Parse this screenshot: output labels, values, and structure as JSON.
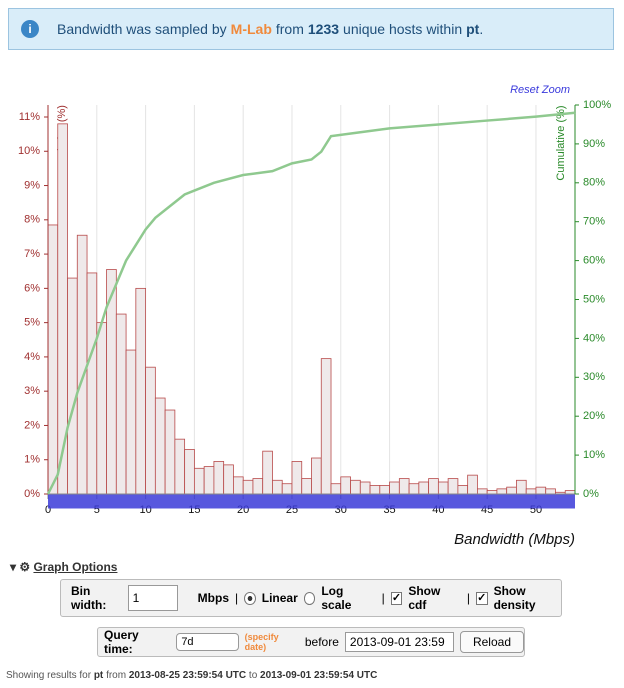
{
  "header": {
    "parts": [
      "Bandwidth was sampled by",
      "M-Lab",
      "from",
      "1233",
      "unique hosts within",
      "pt",
      "."
    ]
  },
  "chart_data": {
    "type": "histogram",
    "reset_zoom": "Reset Zoom",
    "ylabel": "Relative (%)",
    "y2label": "Cumulative (%)",
    "xlabel": "Bandwidth (Mbps)",
    "bins": [
      0,
      1,
      2,
      3,
      4,
      5,
      6,
      7,
      8,
      9,
      10,
      11,
      12,
      13,
      14,
      15,
      16,
      17,
      18,
      19,
      20,
      21,
      22,
      23,
      24,
      25,
      26,
      27,
      28,
      29,
      30,
      31,
      32,
      33,
      34,
      35,
      36,
      37,
      38,
      39,
      40,
      41,
      42,
      43,
      44,
      45,
      46,
      47,
      48,
      49,
      50,
      51,
      52,
      53,
      54
    ],
    "values": [
      7.85,
      10.8,
      6.3,
      7.55,
      6.45,
      5.0,
      6.55,
      5.25,
      4.2,
      6.0,
      3.7,
      2.8,
      2.45,
      1.6,
      1.3,
      0.75,
      0.8,
      0.95,
      0.85,
      0.5,
      0.4,
      0.45,
      1.25,
      0.4,
      0.3,
      0.95,
      0.45,
      1.05,
      3.95,
      0.3,
      0.5,
      0.4,
      0.35,
      0.25,
      0.25,
      0.35,
      0.45,
      0.3,
      0.35,
      0.45,
      0.35,
      0.45,
      0.25,
      0.55,
      0.15,
      0.1,
      0.15,
      0.2,
      0.4,
      0.15,
      0.2,
      0.15,
      0.05,
      0.1
    ],
    "color": "#efe9ea",
    "edge_color": "#b84a4a",
    "cdf": {
      "x": [
        0,
        1,
        2,
        3,
        4,
        5,
        6,
        7,
        8,
        9,
        10,
        11,
        12,
        13,
        14,
        15,
        17,
        20,
        23,
        25,
        27,
        28,
        29,
        32,
        35,
        40,
        45,
        50,
        54
      ],
      "values": [
        0,
        5,
        17,
        26,
        33,
        40,
        48,
        54,
        60,
        64,
        68,
        71,
        73,
        75,
        77,
        78,
        80,
        82,
        83,
        85,
        86,
        88,
        92,
        93,
        94,
        95,
        96,
        97,
        98
      ],
      "axis": "y2",
      "color": "#8fc98f"
    },
    "xlim": [
      0,
      54
    ],
    "xticks": [
      0,
      5,
      10,
      15,
      20,
      25,
      30,
      35,
      40,
      45,
      50
    ],
    "ylim": [
      0,
      11.35
    ],
    "yticks": [
      {
        "value": 0,
        "label": "0%"
      },
      {
        "value": 1,
        "label": "1%"
      },
      {
        "value": 2,
        "label": "2%"
      },
      {
        "value": 3,
        "label": "3%"
      },
      {
        "value": 4,
        "label": "4%"
      },
      {
        "value": 5,
        "label": "5%"
      },
      {
        "value": 6,
        "label": "6%"
      },
      {
        "value": 7,
        "label": "7%"
      },
      {
        "value": 8,
        "label": "8%"
      },
      {
        "value": 9,
        "label": "9%"
      },
      {
        "value": 10,
        "label": "10%"
      },
      {
        "value": 11,
        "label": "11%"
      }
    ],
    "y2lim": [
      0,
      100
    ],
    "y2ticks": [
      {
        "value": 0,
        "label": "0%"
      },
      {
        "value": 10,
        "label": "10%"
      },
      {
        "value": 20,
        "label": "20%"
      },
      {
        "value": 30,
        "label": "30%"
      },
      {
        "value": 40,
        "label": "40%"
      },
      {
        "value": 50,
        "label": "50%"
      },
      {
        "value": 60,
        "label": "60%"
      },
      {
        "value": 70,
        "label": "70%"
      },
      {
        "value": 80,
        "label": "80%"
      },
      {
        "value": 90,
        "label": "90%"
      },
      {
        "value": 100,
        "label": "100%"
      }
    ],
    "grid": "x"
  },
  "controls": {
    "graph_options": "Graph Options",
    "bin_width_label": "Bin width:",
    "bin_width": "1",
    "unit": "Mbps",
    "separator": "|",
    "linear": "Linear",
    "log_scale": "Log scale",
    "show_cdf": "Show cdf",
    "show_density": "Show density",
    "query_time_label": "Query time:",
    "query_time": "7d",
    "specify_date": "(specify date)",
    "before": "before",
    "date": "2013-09-01 23:59",
    "reload": "Reload"
  },
  "footer": {
    "parts": [
      "Showing results for",
      "pt",
      "from",
      "2013-08-25 23:59:54 UTC",
      "to",
      "2013-09-01 23:59:54 UTC"
    ]
  }
}
